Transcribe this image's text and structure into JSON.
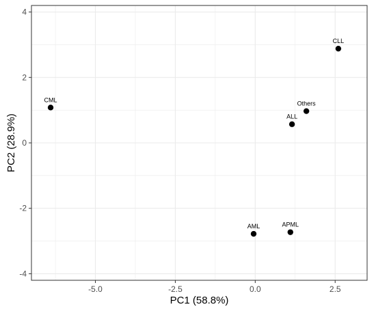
{
  "chart_data": {
    "type": "scatter",
    "xlabel": "PC1 (58.8%)",
    "ylabel": "PC2 (28.9%)",
    "xlim": [
      -7.0,
      3.5
    ],
    "ylim": [
      -4.2,
      4.2
    ],
    "xticks": [
      -5.0,
      -2.5,
      0.0,
      2.5
    ],
    "xtick_labels": [
      "-5.0",
      "-2.5",
      "0.0",
      "2.5"
    ],
    "yticks": [
      -4,
      -2,
      0,
      2,
      4
    ],
    "ytick_labels": [
      "-4",
      "-2",
      "0",
      "2",
      "4"
    ],
    "grid": true,
    "legend": "none",
    "points": [
      {
        "label": "CML",
        "x": -6.4,
        "y": 1.08
      },
      {
        "label": "CLL",
        "x": 2.6,
        "y": 2.88
      },
      {
        "label": "Others",
        "x": 1.6,
        "y": 0.97
      },
      {
        "label": "ALL",
        "x": 1.15,
        "y": 0.57
      },
      {
        "label": "AML",
        "x": -0.05,
        "y": -2.78
      },
      {
        "label": "APML",
        "x": 1.1,
        "y": -2.73
      }
    ],
    "colors": {
      "point": "#000000",
      "grid": "#ebebeb",
      "panel_border": "#333333"
    }
  }
}
